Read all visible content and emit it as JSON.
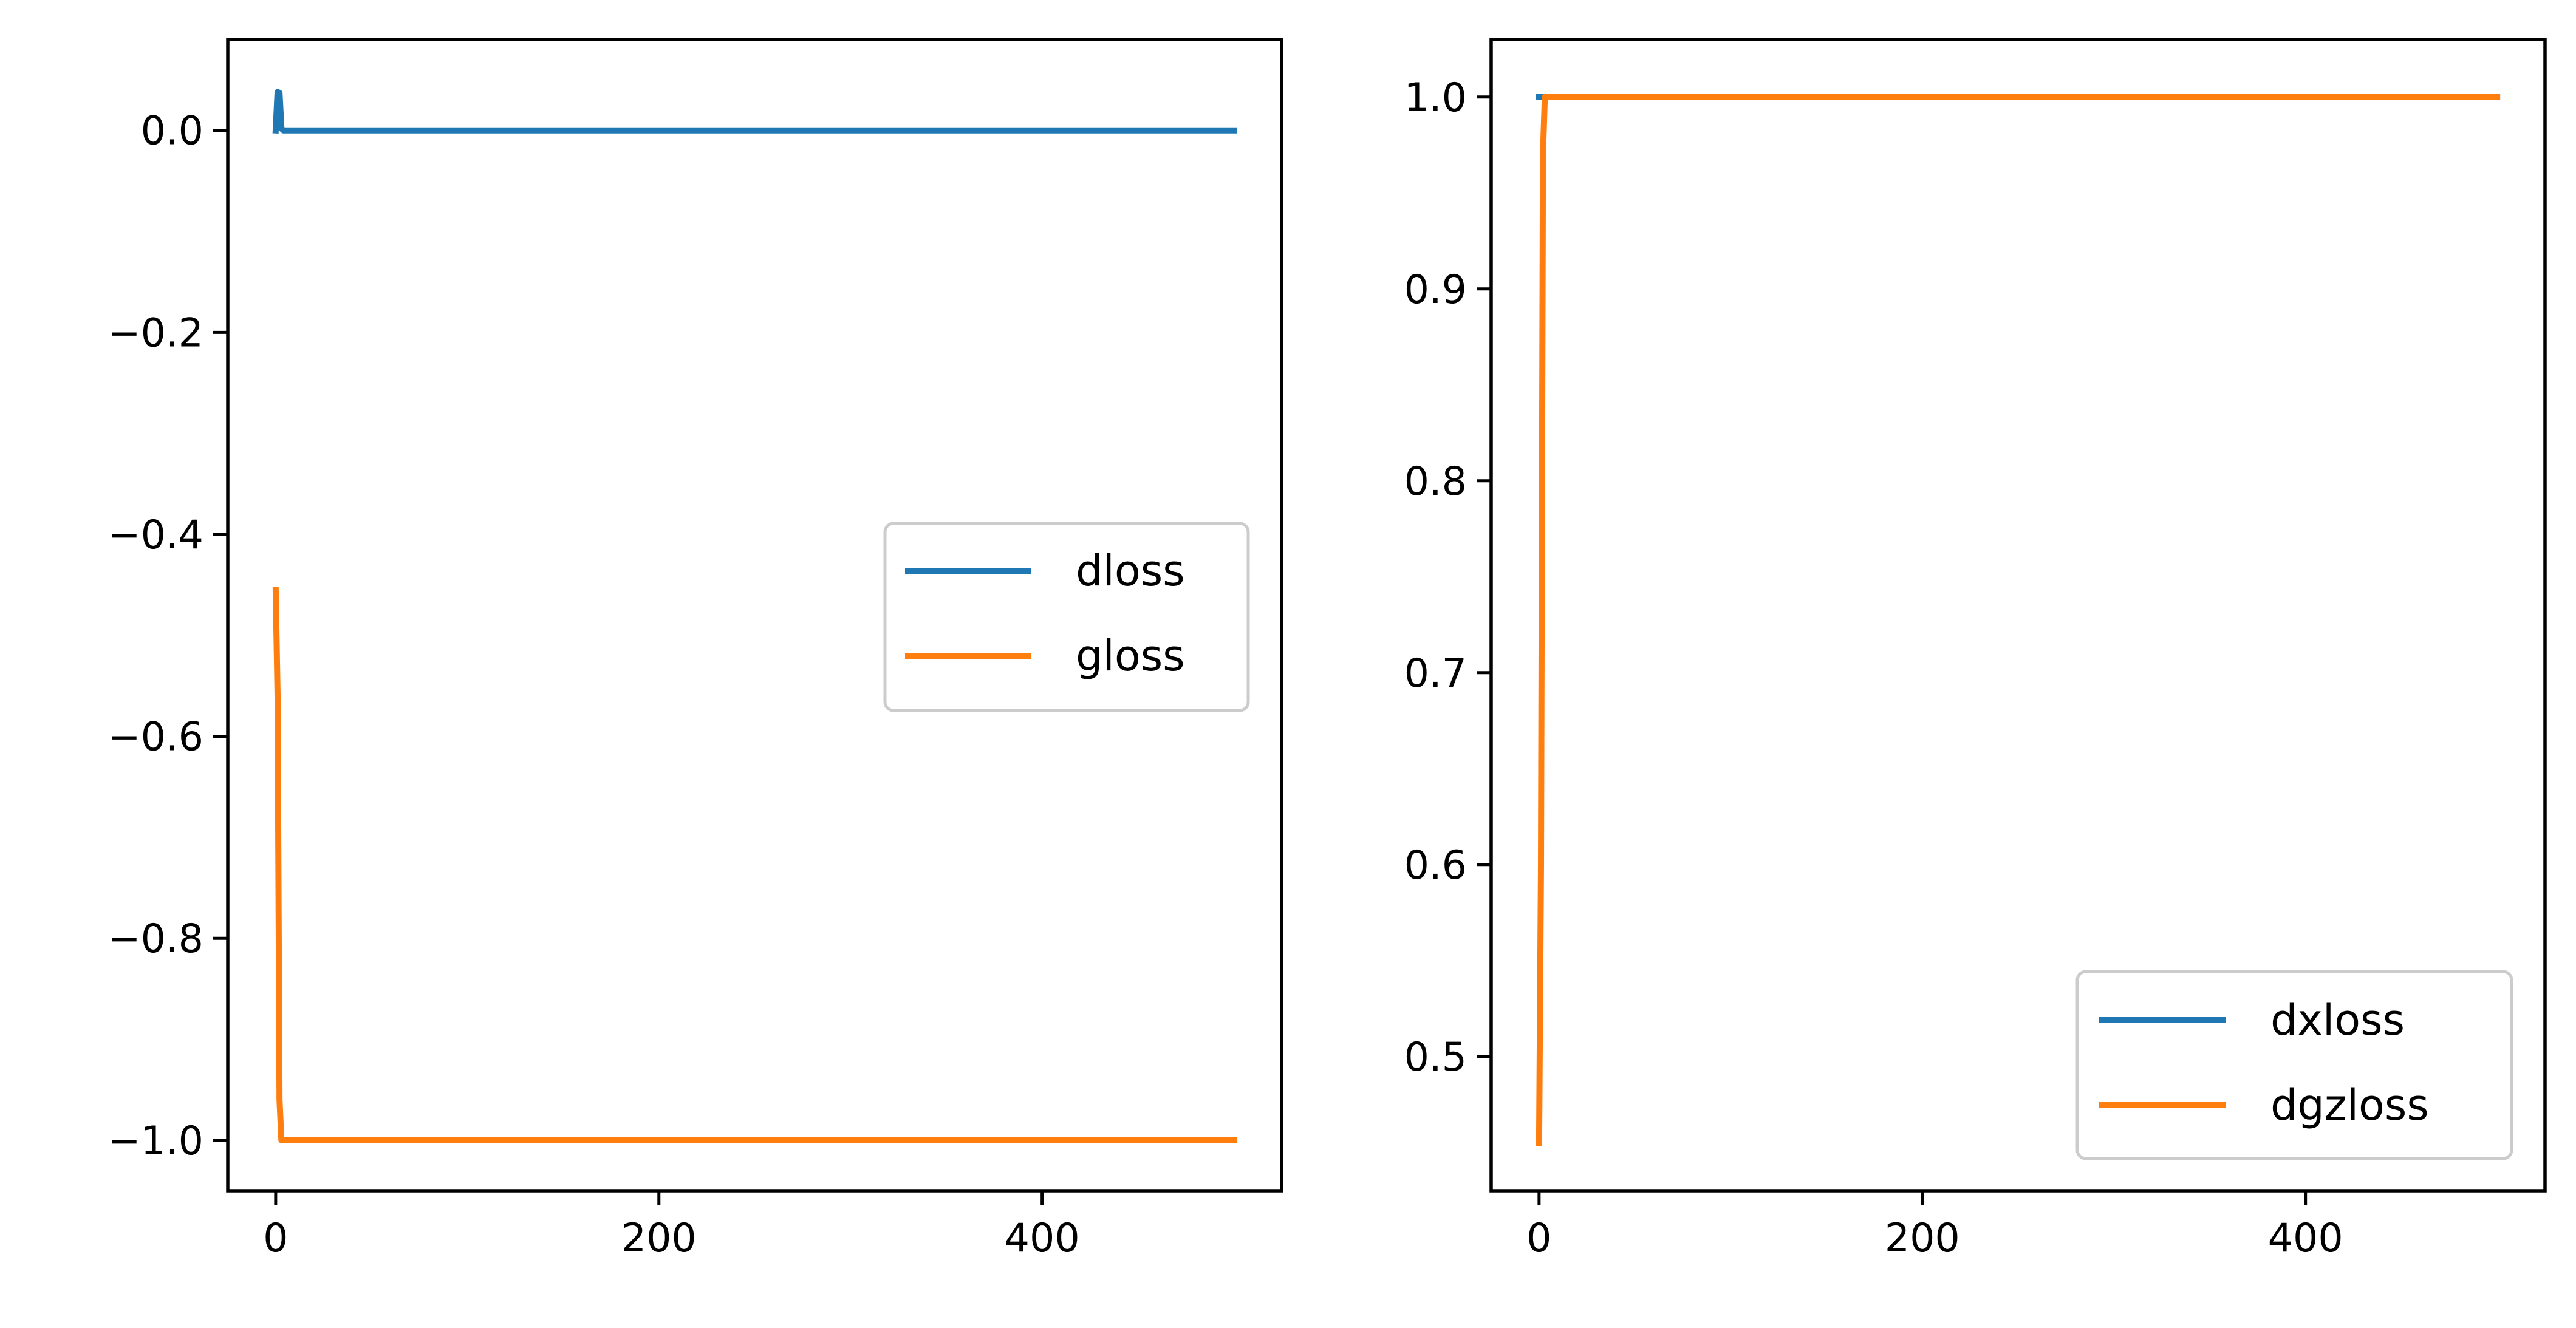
{
  "colors": {
    "series_1": "#1f77b4",
    "series_2": "#ff7f0e"
  },
  "chart_data": [
    {
      "type": "line",
      "xlim": [
        -25,
        525
      ],
      "ylim": [
        -1.05,
        0.09
      ],
      "x_ticks": [
        0,
        200,
        400
      ],
      "x_tick_labels": [
        "0",
        "200",
        "400"
      ],
      "y_ticks": [
        0.0,
        -0.2,
        -0.4,
        -0.6,
        -0.8,
        -1.0
      ],
      "y_tick_labels": [
        "0.0",
        "−0.2",
        "−0.4",
        "−0.6",
        "−0.8",
        "−1.0"
      ],
      "grid": false,
      "legend_position": "center-right",
      "series": [
        {
          "name": "dloss",
          "color": "#1f77b4",
          "x": [
            0,
            1,
            2,
            3,
            4,
            10,
            50,
            100,
            200,
            300,
            400,
            500
          ],
          "y": [
            0.0,
            0.038,
            0.037,
            0.002,
            0.0,
            0.0,
            0.0,
            0.0,
            0.0,
            0.0,
            0.0,
            0.0
          ]
        },
        {
          "name": "gloss",
          "color": "#ff7f0e",
          "x": [
            0,
            1,
            2,
            3,
            4,
            10,
            50,
            100,
            200,
            300,
            400,
            500
          ],
          "y": [
            -0.455,
            -0.56,
            -0.96,
            -1.0,
            -1.0,
            -1.0,
            -1.0,
            -1.0,
            -1.0,
            -1.0,
            -1.0,
            -1.0
          ]
        }
      ]
    },
    {
      "type": "line",
      "xlim": [
        -25,
        525
      ],
      "ylim": [
        0.43,
        1.03
      ],
      "x_ticks": [
        0,
        200,
        400
      ],
      "x_tick_labels": [
        "0",
        "200",
        "400"
      ],
      "y_ticks": [
        0.5,
        0.6,
        0.7,
        0.8,
        0.9,
        1.0
      ],
      "y_tick_labels": [
        "0.5",
        "0.6",
        "0.7",
        "0.8",
        "0.9",
        "1.0"
      ],
      "grid": false,
      "legend_position": "lower-right",
      "series": [
        {
          "name": "dxloss",
          "color": "#1f77b4",
          "x": [
            0,
            1,
            2,
            3,
            4,
            10,
            50,
            100,
            200,
            300,
            400,
            500
          ],
          "y": [
            1.0,
            1.0,
            1.0,
            1.0,
            1.0,
            1.0,
            1.0,
            1.0,
            1.0,
            1.0,
            1.0,
            1.0
          ]
        },
        {
          "name": "dgzloss",
          "color": "#ff7f0e",
          "x": [
            0,
            1,
            2,
            3,
            4,
            10,
            50,
            100,
            200,
            300,
            400,
            500
          ],
          "y": [
            0.455,
            0.6,
            0.97,
            1.0,
            1.0,
            1.0,
            1.0,
            1.0,
            1.0,
            1.0,
            1.0,
            1.0
          ]
        }
      ]
    }
  ]
}
